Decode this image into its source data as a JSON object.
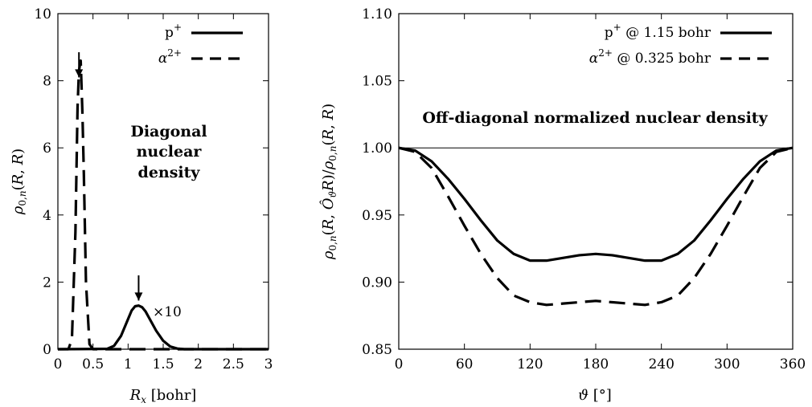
{
  "chart_data": [
    {
      "type": "line",
      "title": "",
      "xlabel": "R_x [bohr]",
      "ylabel": "ρ_{0,n}(R, R)",
      "xlim": [
        0,
        3
      ],
      "ylim": [
        0,
        10
      ],
      "xticks": [
        "0",
        "0.5",
        "1",
        "1.5",
        "2",
        "2.5",
        "3"
      ],
      "yticks": [
        "0",
        "2",
        "4",
        "6",
        "8",
        "10"
      ],
      "legend_position": "top-right",
      "annotation": "Diagonal nuclear density",
      "scale_note": "×10",
      "series": [
        {
          "name": "p+",
          "style": "solid",
          "x": [
            0.0,
            0.7,
            0.8,
            0.9,
            1.0,
            1.05,
            1.1,
            1.15,
            1.2,
            1.25,
            1.3,
            1.4,
            1.5,
            1.6,
            1.7,
            1.8,
            2.0,
            3.0
          ],
          "y": [
            0.0,
            0.01,
            0.1,
            0.4,
            0.9,
            1.15,
            1.28,
            1.3,
            1.25,
            1.12,
            0.93,
            0.55,
            0.25,
            0.08,
            0.02,
            0.0,
            0.0,
            0.0
          ]
        },
        {
          "name": "α2+",
          "style": "dashed",
          "x": [
            0.0,
            0.15,
            0.2,
            0.25,
            0.28,
            0.3,
            0.325,
            0.35,
            0.37,
            0.4,
            0.45,
            0.5,
            3.0
          ],
          "y": [
            0.0,
            0.0,
            0.3,
            3.5,
            7.2,
            8.3,
            8.6,
            7.0,
            5.2,
            2.0,
            0.15,
            0.0,
            0.0
          ]
        }
      ],
      "markers": [
        {
          "label": "p+ peak",
          "x": 1.15,
          "y_top": 2.2,
          "y_bottom": 1.45
        },
        {
          "label": "α2+ peak",
          "x": 0.3,
          "y_top": 8.85,
          "y_bottom": 8.1
        }
      ]
    },
    {
      "type": "line",
      "title": "",
      "xlabel": "ϑ [°]",
      "ylabel": "ρ_{0,n}(R, Ô_ϑ R) / ρ_{0,n}(R, R)",
      "xlim": [
        0,
        360
      ],
      "ylim": [
        0.85,
        1.1
      ],
      "xticks": [
        "0",
        "60",
        "120",
        "180",
        "240",
        "300",
        "360"
      ],
      "yticks": [
        "0.85",
        "0.90",
        "0.95",
        "1.00",
        "1.05",
        "1.10"
      ],
      "legend_position": "top-right",
      "annotation": "Off-diagonal normalized nuclear density",
      "reference_line": 1.0,
      "series": [
        {
          "name": "p+ @ 1.15 bohr",
          "style": "solid",
          "x": [
            0,
            15,
            30,
            45,
            60,
            75,
            90,
            105,
            120,
            135,
            150,
            165,
            180,
            195,
            210,
            225,
            240,
            255,
            270,
            285,
            300,
            315,
            330,
            345,
            360
          ],
          "y": [
            1.0,
            0.998,
            0.99,
            0.977,
            0.962,
            0.946,
            0.931,
            0.921,
            0.916,
            0.916,
            0.918,
            0.92,
            0.921,
            0.92,
            0.918,
            0.916,
            0.916,
            0.921,
            0.931,
            0.946,
            0.962,
            0.977,
            0.99,
            0.998,
            1.0
          ]
        },
        {
          "name": "α2+ @ 0.325 bohr",
          "style": "dashed",
          "x": [
            0,
            15,
            30,
            45,
            60,
            75,
            90,
            105,
            120,
            135,
            150,
            165,
            180,
            195,
            210,
            225,
            240,
            255,
            270,
            285,
            300,
            315,
            330,
            345,
            360
          ],
          "y": [
            1.0,
            0.997,
            0.985,
            0.964,
            0.942,
            0.921,
            0.903,
            0.89,
            0.885,
            0.883,
            0.884,
            0.885,
            0.886,
            0.885,
            0.884,
            0.883,
            0.885,
            0.89,
            0.903,
            0.921,
            0.942,
            0.964,
            0.985,
            0.997,
            1.0
          ]
        }
      ]
    }
  ]
}
